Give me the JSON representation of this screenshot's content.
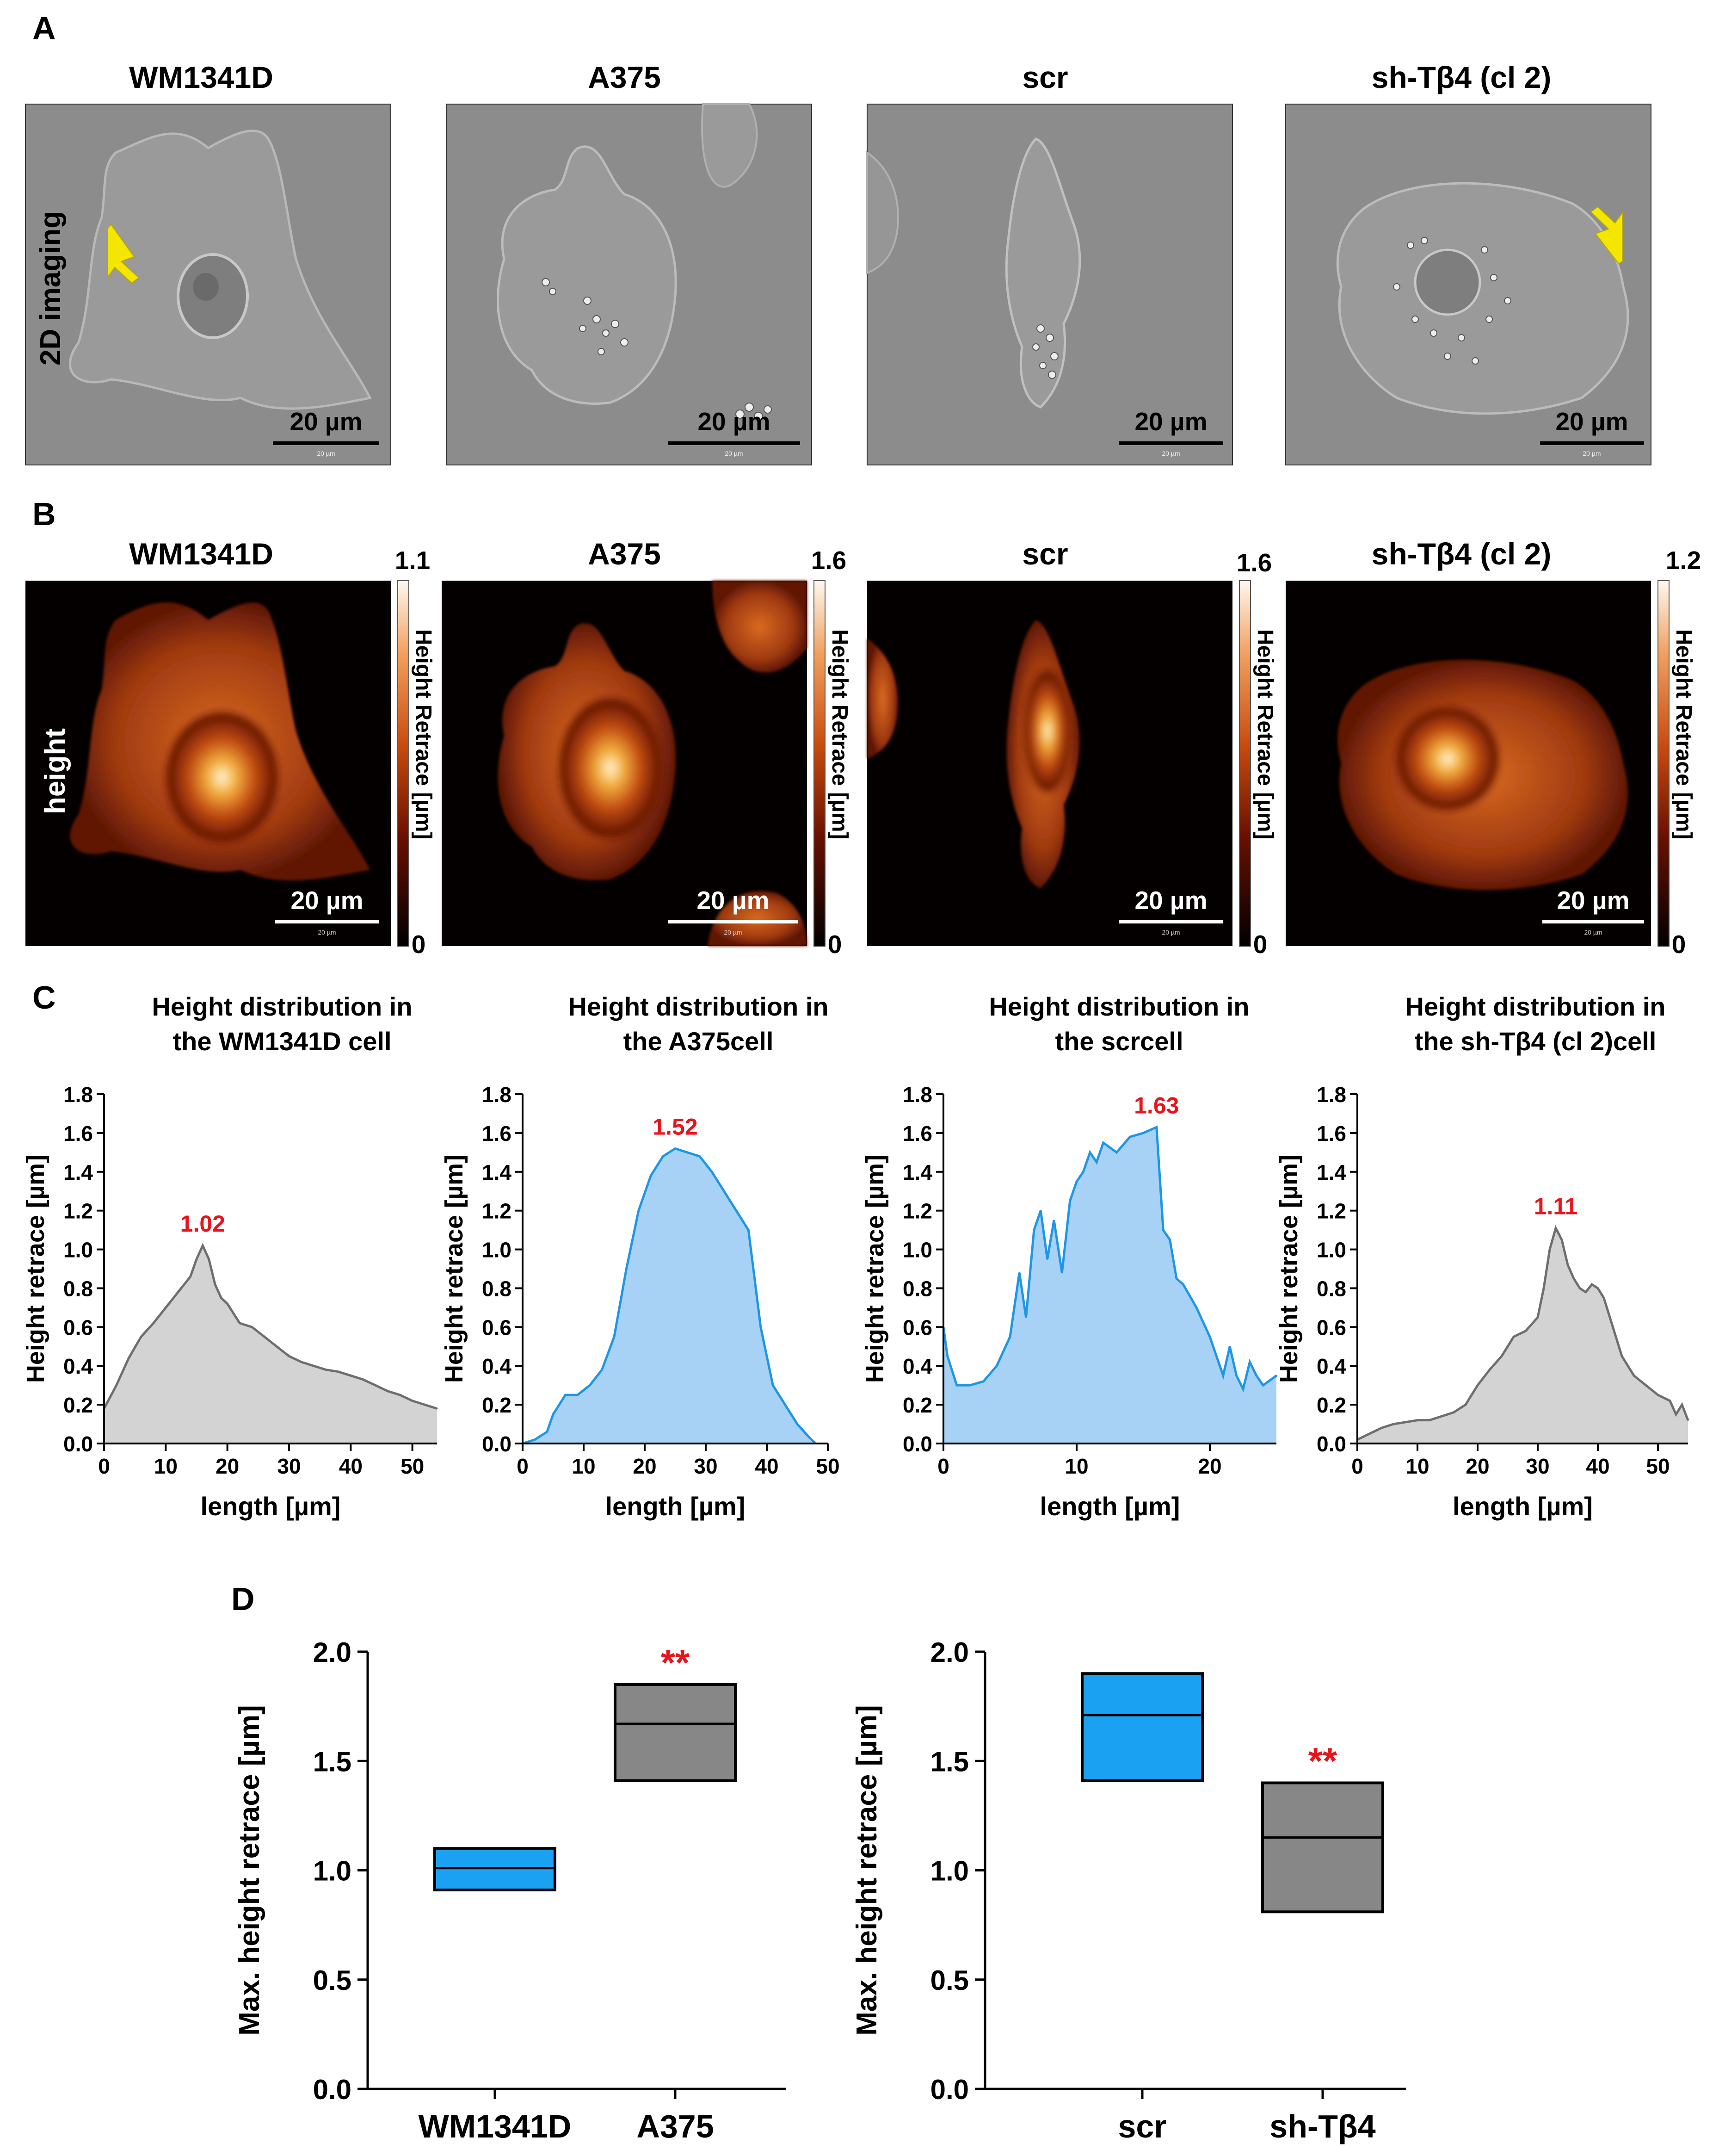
{
  "figure": {
    "panel_letters": [
      "A",
      "B",
      "C",
      "D"
    ],
    "cell_names": [
      "WM1341D",
      "A375",
      "scr",
      "sh-Tβ4 (cl 2)"
    ],
    "row_label_a": "2D imaging",
    "row_label_b": "height",
    "scale_bar": "20 µm",
    "scale_bar_tiny": "20 µm",
    "colorbar_label": "Height Retrace [µm]",
    "colorbar_max": [
      "1.1",
      "1.6",
      "1.6",
      "1.2"
    ],
    "colorbar_min": [
      "0",
      "0",
      "0",
      "0"
    ],
    "colors": {
      "gray_fill": "#d3d3d3",
      "gray_line": "#6e6e6e",
      "blue_fill": "#a7d2f5",
      "blue_line": "#1e96e6",
      "box_blue": "#1ba1f2",
      "box_gray": "#878787",
      "peak_red": "#e8141c",
      "arrow_yellow": "#f5e600"
    }
  },
  "chart_data": [
    {
      "type": "area",
      "title": [
        "Height distribution in",
        "the WM1341D cell"
      ],
      "xlabel": "length [µm]",
      "ylabel": "Height retrace [µm]",
      "xlim": [
        0,
        54
      ],
      "ylim": [
        0,
        1.8
      ],
      "xticks": [
        "0",
        "10",
        "20",
        "30",
        "40",
        "50"
      ],
      "yticks": [
        "0.0",
        "0.2",
        "0.4",
        "0.6",
        "0.8",
        "1.0",
        "1.2",
        "1.4",
        "1.6",
        "1.8"
      ],
      "peak_label": "1.02",
      "style": "gray",
      "x": [
        0,
        2,
        4,
        6,
        8,
        10,
        12,
        14,
        15,
        16,
        17,
        18,
        19,
        20,
        22,
        24,
        26,
        28,
        30,
        32,
        34,
        36,
        38,
        40,
        42,
        44,
        46,
        48,
        50,
        52,
        54
      ],
      "y": [
        0.18,
        0.3,
        0.44,
        0.55,
        0.62,
        0.7,
        0.78,
        0.86,
        0.95,
        1.02,
        0.95,
        0.82,
        0.75,
        0.72,
        0.62,
        0.6,
        0.55,
        0.5,
        0.45,
        0.42,
        0.4,
        0.38,
        0.37,
        0.35,
        0.33,
        0.3,
        0.27,
        0.25,
        0.22,
        0.2,
        0.18
      ]
    },
    {
      "type": "area",
      "title": [
        "Height distribution in",
        "the A375cell"
      ],
      "xlabel": "length [µm]",
      "ylabel": "Height retrace [µm]",
      "xlim": [
        0,
        50
      ],
      "ylim": [
        0,
        1.8
      ],
      "xticks": [
        "0",
        "10",
        "20",
        "30",
        "40",
        "50"
      ],
      "yticks": [
        "0.0",
        "0.2",
        "0.4",
        "0.6",
        "0.8",
        "1.0",
        "1.2",
        "1.4",
        "1.6",
        "1.8"
      ],
      "peak_label": "1.52",
      "style": "blue",
      "x": [
        0,
        2,
        4,
        5,
        7,
        9,
        11,
        13,
        15,
        17,
        19,
        21,
        23,
        25,
        27,
        29,
        31,
        33,
        35,
        37,
        38,
        39,
        40,
        41,
        43,
        45,
        47,
        48
      ],
      "y": [
        0.0,
        0.02,
        0.06,
        0.15,
        0.25,
        0.25,
        0.3,
        0.38,
        0.55,
        0.9,
        1.2,
        1.38,
        1.48,
        1.52,
        1.5,
        1.48,
        1.4,
        1.3,
        1.2,
        1.1,
        0.85,
        0.6,
        0.45,
        0.3,
        0.2,
        0.1,
        0.03,
        0.0
      ]
    },
    {
      "type": "area",
      "title": [
        "Height distribution in",
        "the scrcell"
      ],
      "xlabel": "length [µm]",
      "ylabel": "Height retrace [µm]",
      "xlim": [
        0,
        25
      ],
      "ylim": [
        0,
        1.8
      ],
      "xticks": [
        "0",
        "10",
        "20"
      ],
      "yticks": [
        "0.0",
        "0.2",
        "0.4",
        "0.6",
        "0.8",
        "1.0",
        "1.2",
        "1.4",
        "1.6",
        "1.8"
      ],
      "peak_label": "1.63",
      "style": "blue",
      "x": [
        0,
        0.3,
        1,
        2,
        3,
        4,
        5,
        5.7,
        6.2,
        6.8,
        7.3,
        7.8,
        8.3,
        8.9,
        9.5,
        10,
        10.5,
        11,
        11.5,
        12,
        13,
        14,
        15,
        16,
        16.5,
        17,
        17.5,
        18,
        19,
        20,
        21,
        21.5,
        22,
        22.5,
        23,
        23.5,
        24,
        25
      ],
      "y": [
        0.6,
        0.45,
        0.3,
        0.3,
        0.32,
        0.4,
        0.55,
        0.88,
        0.65,
        1.1,
        1.2,
        0.95,
        1.15,
        0.88,
        1.25,
        1.35,
        1.4,
        1.5,
        1.45,
        1.55,
        1.5,
        1.58,
        1.6,
        1.63,
        1.1,
        1.05,
        0.85,
        0.82,
        0.7,
        0.55,
        0.35,
        0.5,
        0.35,
        0.28,
        0.42,
        0.35,
        0.3,
        0.35
      ]
    },
    {
      "type": "area",
      "title": [
        "Height distribution in",
        "the sh-Tβ4 (cl 2)cell"
      ],
      "xlabel": "length [µm]",
      "ylabel": "Height retrace [µm]",
      "xlim": [
        0,
        55
      ],
      "ylim": [
        0,
        1.8
      ],
      "xticks": [
        "0",
        "10",
        "20",
        "30",
        "40",
        "50"
      ],
      "yticks": [
        "0.0",
        "0.2",
        "0.4",
        "0.6",
        "0.8",
        "1.0",
        "1.2",
        "1.4",
        "1.6",
        "1.8"
      ],
      "peak_label": "1.11",
      "style": "gray",
      "x": [
        0,
        2,
        4,
        6,
        8,
        10,
        12,
        14,
        16,
        18,
        20,
        22,
        24,
        26,
        28,
        30,
        31,
        32,
        33,
        34,
        35,
        36,
        37,
        38,
        39,
        40,
        41,
        42,
        44,
        46,
        48,
        50,
        52,
        53,
        54,
        55
      ],
      "y": [
        0.02,
        0.05,
        0.08,
        0.1,
        0.11,
        0.12,
        0.12,
        0.14,
        0.16,
        0.2,
        0.3,
        0.38,
        0.45,
        0.55,
        0.58,
        0.65,
        0.8,
        1.0,
        1.11,
        1.05,
        0.92,
        0.85,
        0.8,
        0.78,
        0.82,
        0.8,
        0.75,
        0.65,
        0.45,
        0.35,
        0.3,
        0.25,
        0.22,
        0.15,
        0.2,
        0.12
      ]
    },
    {
      "type": "box",
      "ylabel": "Max. height  retrace  [µm]",
      "ylim": [
        0,
        2.0
      ],
      "yticks": [
        "0.0",
        "0.5",
        "1.0",
        "1.5",
        "2.0"
      ],
      "categories": [
        "WM1341D",
        "A375"
      ],
      "boxes": [
        {
          "low": 0.91,
          "median": 1.01,
          "high": 1.1,
          "color": "blue"
        },
        {
          "low": 1.41,
          "median": 1.67,
          "high": 1.85,
          "color": "gray",
          "sig": "**"
        }
      ]
    },
    {
      "type": "box",
      "ylabel": "Max. height  retrace  [µm]",
      "ylim": [
        0,
        2.0
      ],
      "yticks": [
        "0.0",
        "0.5",
        "1.0",
        "1.5",
        "2.0"
      ],
      "categories": [
        "scr",
        "sh-Tβ4"
      ],
      "boxes": [
        {
          "low": 1.41,
          "median": 1.71,
          "high": 1.9,
          "color": "blue"
        },
        {
          "low": 0.81,
          "median": 1.15,
          "high": 1.4,
          "color": "gray",
          "sig": "**"
        }
      ]
    }
  ]
}
